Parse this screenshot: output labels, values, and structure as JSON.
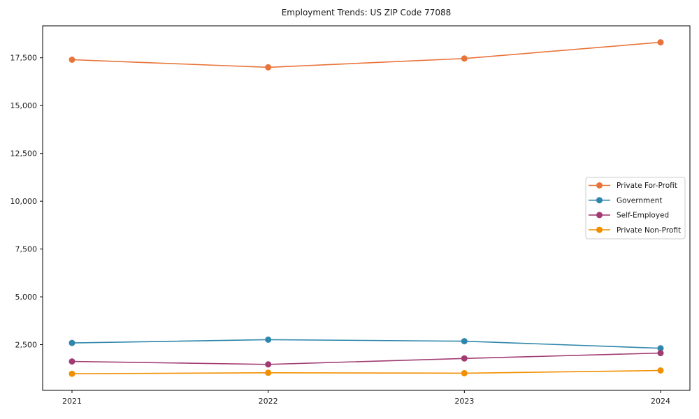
{
  "chart_data": {
    "type": "line",
    "title": "Employment Trends: US ZIP Code 77088",
    "x_categories": [
      "2021",
      "2022",
      "2023",
      "2024"
    ],
    "series": [
      {
        "name": "Private For-Profit",
        "color": "#E8743B",
        "values": [
          17400,
          17000,
          17460,
          18310
        ]
      },
      {
        "name": "Government",
        "color": "#2E86AB",
        "values": [
          2590,
          2760,
          2680,
          2310
        ]
      },
      {
        "name": "Self-Employed",
        "color": "#A23B72",
        "values": [
          1620,
          1470,
          1780,
          2060
        ]
      },
      {
        "name": "Private Non-Profit",
        "color": "#F18F01",
        "values": [
          980,
          1030,
          1010,
          1150
        ]
      }
    ],
    "yticks": {
      "values": [
        2500,
        5000,
        7500,
        10000,
        12500,
        15000,
        17500
      ],
      "labels": [
        "2,500",
        "5,000",
        "7,500",
        "10,000",
        "12,500",
        "15,000",
        "17,500"
      ]
    },
    "ylim": [
      110,
      19170
    ],
    "xlabel": "",
    "ylabel": "",
    "grid": false,
    "marker": "circle",
    "legend": {
      "position": "right-center",
      "border_color": "#cccccc",
      "background": "#ffffff"
    },
    "axis_color": "#000000",
    "background": "#ffffff"
  }
}
